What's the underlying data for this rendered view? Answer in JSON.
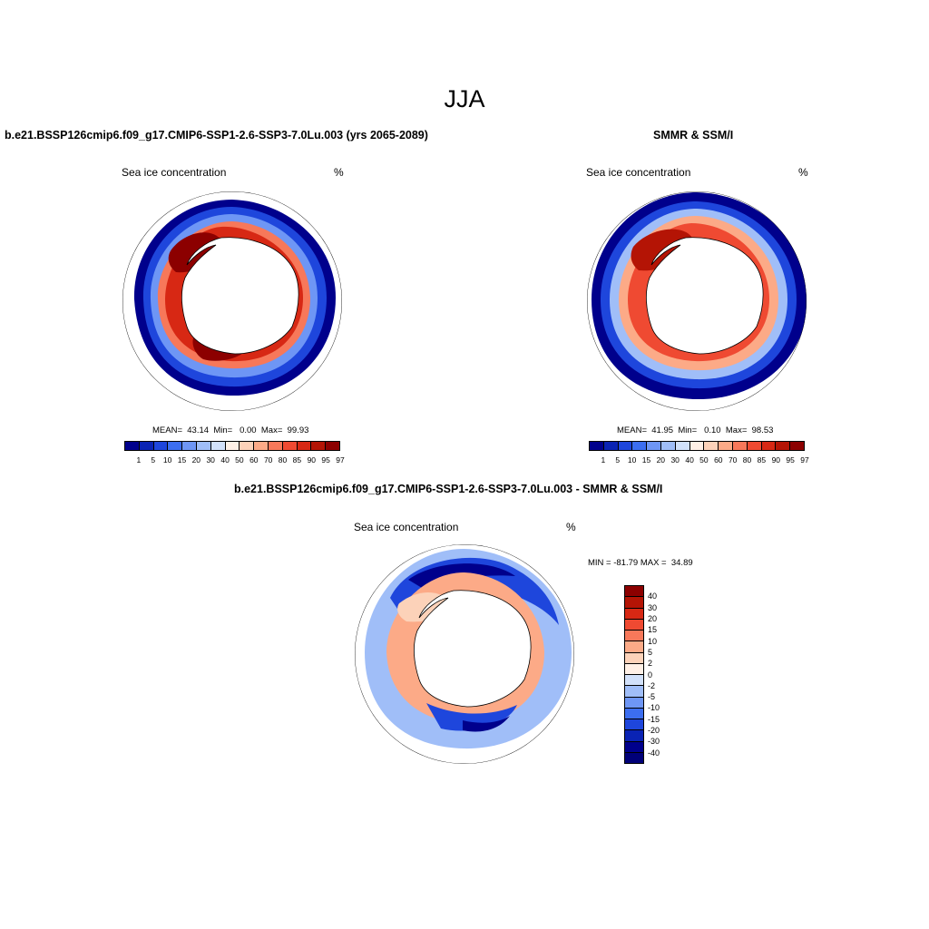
{
  "figure": {
    "title": "JJA"
  },
  "panels": [
    {
      "id": "model",
      "title": "b.e21.BSSP126cmip6.f09_g17.CMIP6-SSP1-2.6-SSP3-7.0Lu.003 (yrs 2065-2089)",
      "left_label": "Sea ice concentration",
      "right_label": "%",
      "stats": "MEAN=  43.14  Min=   0.00  Max=  99.93"
    },
    {
      "id": "obs",
      "title": "SMMR & SSM/I",
      "left_label": "Sea ice concentration",
      "right_label": "%",
      "stats": "MEAN=  41.95  Min=   0.10  Max=  98.53"
    },
    {
      "id": "diff",
      "title": "b.e21.BSSP126cmip6.f09_g17.CMIP6-SSP1-2.6-SSP3-7.0Lu.003 - SMMR & SSM/I",
      "left_label": "Sea ice concentration",
      "right_label": "%",
      "stats": "MIN = -81.79 MAX =  34.89"
    }
  ],
  "colorbar_abs": {
    "labels": [
      "1",
      "5",
      "10",
      "15",
      "20",
      "30",
      "40",
      "50",
      "60",
      "70",
      "80",
      "85",
      "90",
      "95",
      "97"
    ],
    "colors": [
      "#00008c",
      "#0a23b4",
      "#1e46dc",
      "#3c6ef0",
      "#6e96f5",
      "#a0bef8",
      "#d2e1fa",
      "#fff0e6",
      "#fcd2b9",
      "#fcaa87",
      "#f7785a",
      "#ef4a32",
      "#d72814",
      "#b41405",
      "#8c0000"
    ]
  },
  "colorbar_diff": {
    "labels": [
      "40",
      "30",
      "20",
      "15",
      "10",
      "5",
      "2",
      "0",
      "-2",
      "-5",
      "-10",
      "-15",
      "-20",
      "-30",
      "-40"
    ],
    "colors": [
      "#8c0000",
      "#b41405",
      "#d72814",
      "#ef4a32",
      "#f7785a",
      "#fcaa87",
      "#fcd2b9",
      "#fff0e6",
      "#d2e1fa",
      "#a0bef8",
      "#6e96f5",
      "#3c6ef0",
      "#1e46dc",
      "#0a23b4",
      "#00008c",
      "#000078"
    ]
  }
}
